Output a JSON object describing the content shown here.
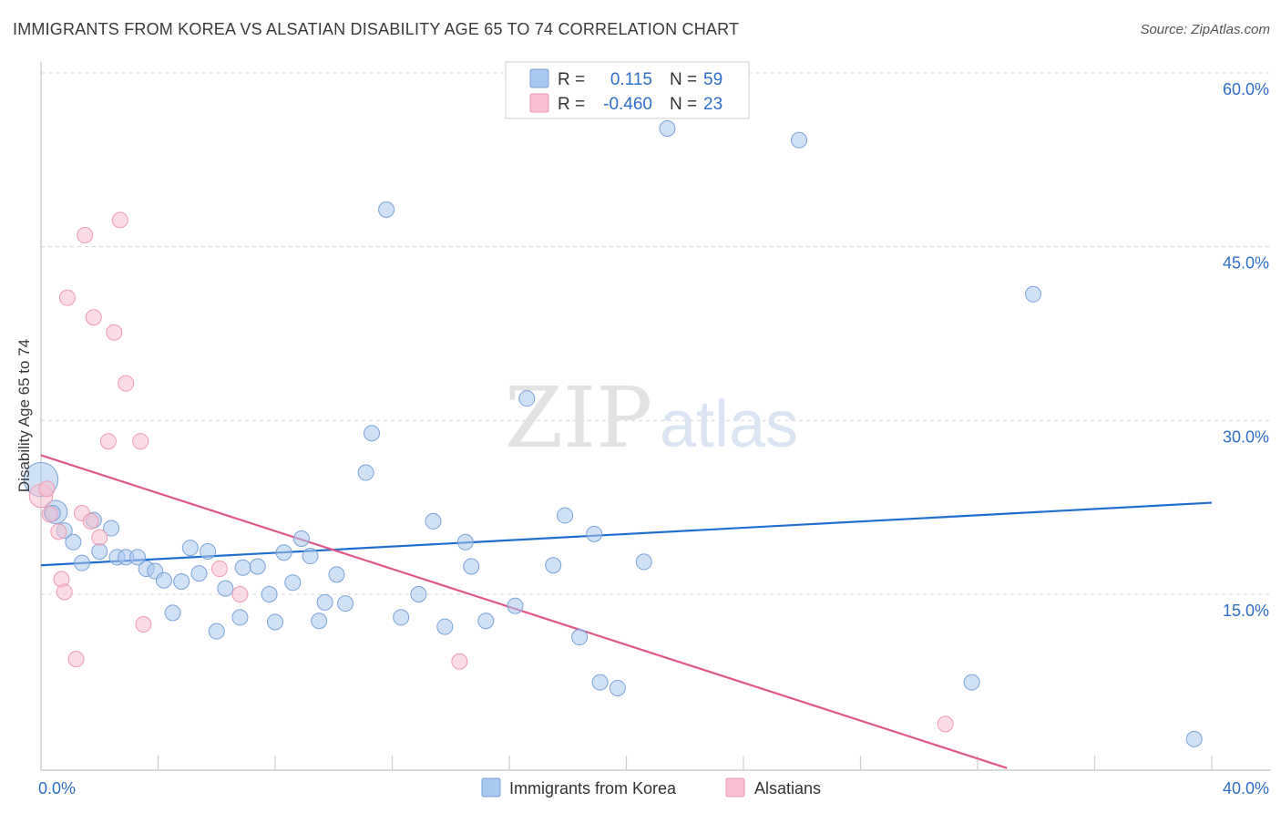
{
  "title": "IMMIGRANTS FROM KOREA VS ALSATIAN DISABILITY AGE 65 TO 74 CORRELATION CHART",
  "source": "Source: ZipAtlas.com",
  "watermark": {
    "zip": "ZIP",
    "atlas": "atlas"
  },
  "legend_box": {
    "rows": [
      {
        "r_label": "R =",
        "r_value": "0.115",
        "n_label": "N =",
        "n_value": "59"
      },
      {
        "r_label": "R =",
        "r_value": "-0.460",
        "n_label": "N =",
        "n_value": "23"
      }
    ]
  },
  "bottom_legend": [
    "Immigrants from Korea",
    "Alsatians"
  ],
  "colors": {
    "blue_fill": "#a9c8ee",
    "blue_stroke": "#7aa4d8",
    "blue_line": "#1f6fcf",
    "pink_fill": "#f7bfd0",
    "pink_stroke": "#ee9ab5",
    "pink_line": "#e0578a",
    "value_text": "#2f6fc9",
    "grid": "#d8d8d8"
  },
  "chart_data": {
    "type": "scatter",
    "title": "IMMIGRANTS FROM KOREA VS ALSATIAN DISABILITY AGE 65 TO 74 CORRELATION CHART",
    "xlabel": "",
    "ylabel": "Disability Age 65 to 74",
    "xlim": [
      0,
      40
    ],
    "ylim": [
      0,
      60
    ],
    "x_tick_labels": [
      {
        "value": 0,
        "label": "0.0%"
      },
      {
        "value": 40,
        "label": "40.0%"
      }
    ],
    "y_tick_labels": [
      {
        "value": 15,
        "label": "15.0%"
      },
      {
        "value": 30,
        "label": "30.0%"
      },
      {
        "value": 45,
        "label": "45.0%"
      },
      {
        "value": 60,
        "label": "60.0%"
      }
    ],
    "series": [
      {
        "name": "Immigrants from Korea",
        "color": "blue",
        "r": 0.115,
        "n": 59,
        "trend": {
          "x": [
            0,
            40
          ],
          "y": [
            17.5,
            22.9
          ]
        },
        "points": [
          [
            0.0,
            24.9,
            2.2
          ],
          [
            0.5,
            22.1,
            1.5
          ],
          [
            0.4,
            22.0,
            1
          ],
          [
            0.8,
            20.5,
            1
          ],
          [
            1.1,
            19.5,
            1
          ],
          [
            1.4,
            17.7,
            1
          ],
          [
            1.8,
            21.4,
            1
          ],
          [
            2.0,
            18.7,
            1
          ],
          [
            2.4,
            20.7,
            1
          ],
          [
            2.6,
            18.2,
            1
          ],
          [
            2.9,
            18.2,
            1
          ],
          [
            3.3,
            18.2,
            1
          ],
          [
            3.6,
            17.2,
            1
          ],
          [
            3.9,
            17.0,
            1
          ],
          [
            4.2,
            16.2,
            1
          ],
          [
            4.5,
            13.4,
            1
          ],
          [
            4.8,
            16.1,
            1
          ],
          [
            5.1,
            19.0,
            1
          ],
          [
            5.4,
            16.8,
            1
          ],
          [
            5.7,
            18.7,
            1
          ],
          [
            6.0,
            11.8,
            1
          ],
          [
            6.3,
            15.5,
            1
          ],
          [
            6.8,
            13.0,
            1
          ],
          [
            6.9,
            17.3,
            1
          ],
          [
            7.4,
            17.4,
            1
          ],
          [
            7.8,
            15.0,
            1
          ],
          [
            8.0,
            12.6,
            1
          ],
          [
            8.3,
            18.6,
            1
          ],
          [
            8.6,
            16.0,
            1
          ],
          [
            8.9,
            19.8,
            1
          ],
          [
            9.2,
            18.3,
            1
          ],
          [
            9.5,
            12.7,
            1
          ],
          [
            9.7,
            14.3,
            1
          ],
          [
            10.1,
            16.7,
            1
          ],
          [
            10.4,
            14.2,
            1
          ],
          [
            11.1,
            25.5,
            1
          ],
          [
            11.3,
            28.9,
            1
          ],
          [
            11.8,
            48.2,
            1
          ],
          [
            12.3,
            13.0,
            1
          ],
          [
            12.9,
            15.0,
            1
          ],
          [
            13.4,
            21.3,
            1
          ],
          [
            13.8,
            12.2,
            1
          ],
          [
            14.5,
            19.5,
            1
          ],
          [
            14.7,
            17.4,
            1
          ],
          [
            15.2,
            12.7,
            1
          ],
          [
            16.2,
            14.0,
            1
          ],
          [
            16.6,
            31.9,
            1
          ],
          [
            17.5,
            17.5,
            1
          ],
          [
            17.9,
            21.8,
            1
          ],
          [
            18.4,
            11.3,
            1
          ],
          [
            18.9,
            20.2,
            1
          ],
          [
            19.1,
            7.4,
            1
          ],
          [
            19.7,
            6.9,
            1
          ],
          [
            20.6,
            17.8,
            1
          ],
          [
            21.4,
            55.2,
            1
          ],
          [
            25.9,
            54.2,
            1
          ],
          [
            31.8,
            7.4,
            1
          ],
          [
            33.9,
            40.9,
            1
          ],
          [
            39.4,
            2.5,
            1
          ]
        ]
      },
      {
        "name": "Alsatians",
        "color": "pink",
        "r": -0.46,
        "n": 23,
        "trend": {
          "x": [
            0,
            33
          ],
          "y": [
            27.0,
            0.0
          ]
        },
        "points": [
          [
            0.0,
            23.5,
            1.5
          ],
          [
            0.3,
            21.9,
            1
          ],
          [
            0.6,
            20.4,
            1
          ],
          [
            0.7,
            16.3,
            1
          ],
          [
            0.8,
            15.2,
            1
          ],
          [
            0.9,
            40.6,
            1
          ],
          [
            1.2,
            9.4,
            1
          ],
          [
            1.4,
            22.0,
            1
          ],
          [
            1.5,
            46.0,
            1
          ],
          [
            1.7,
            21.3,
            1
          ],
          [
            1.8,
            38.9,
            1
          ],
          [
            2.0,
            19.9,
            1
          ],
          [
            2.3,
            28.2,
            1
          ],
          [
            2.5,
            37.6,
            1
          ],
          [
            2.7,
            47.3,
            1
          ],
          [
            2.9,
            33.2,
            1
          ],
          [
            3.4,
            28.2,
            1
          ],
          [
            3.5,
            12.4,
            1
          ],
          [
            6.1,
            17.2,
            1
          ],
          [
            6.8,
            15.0,
            1
          ],
          [
            14.3,
            9.2,
            1
          ],
          [
            30.9,
            3.8,
            1
          ],
          [
            0.2,
            24.1,
            1
          ]
        ]
      }
    ]
  }
}
